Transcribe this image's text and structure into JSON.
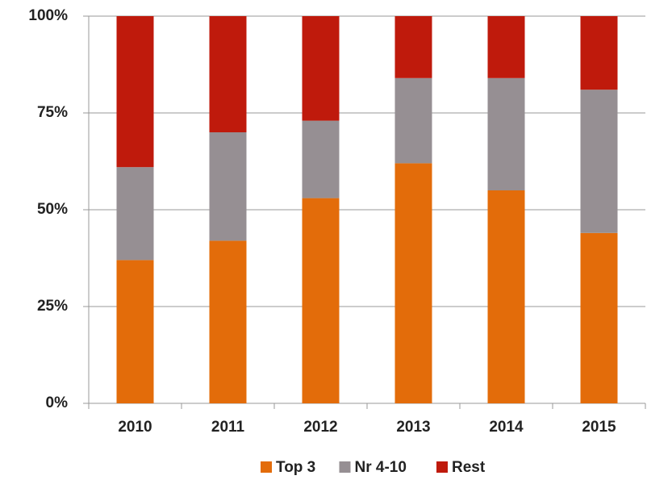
{
  "chart_data": {
    "type": "stacked_bar",
    "categories": [
      "2010",
      "2011",
      "2012",
      "2013",
      "2014",
      "2015"
    ],
    "series": [
      {
        "name": "Top 3",
        "color": "#e36c0a",
        "values": [
          37,
          42,
          53,
          62,
          55,
          44
        ]
      },
      {
        "name": "Nr 4-10",
        "color": "#968f93",
        "values": [
          24,
          28,
          20,
          22,
          29,
          37
        ]
      },
      {
        "name": "Rest",
        "color": "#bf1a0c",
        "values": [
          39,
          30,
          27,
          16,
          16,
          19
        ]
      }
    ],
    "ylim": [
      0,
      100
    ],
    "yticks": [
      {
        "value": 0,
        "label": "0%"
      },
      {
        "value": 25,
        "label": "25%"
      },
      {
        "value": 50,
        "label": "50%"
      },
      {
        "value": 75,
        "label": "75%"
      },
      {
        "value": 100,
        "label": "100%"
      }
    ],
    "grid": true,
    "legend": "bottom"
  }
}
